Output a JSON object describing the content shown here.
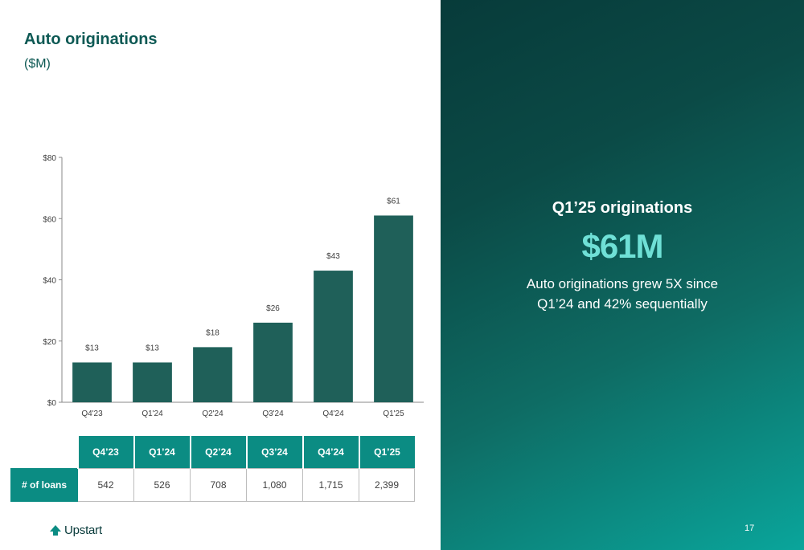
{
  "header": {
    "title": "Auto originations",
    "subtitle": "($M)"
  },
  "chart_data": {
    "type": "bar",
    "categories": [
      "Q4'23",
      "Q1'24",
      "Q2'24",
      "Q3'24",
      "Q4'24",
      "Q1'25"
    ],
    "values": [
      13,
      13,
      18,
      26,
      43,
      61
    ],
    "value_labels": [
      "$13",
      "$13",
      "$18",
      "$26",
      "$43",
      "$61"
    ],
    "ylim": [
      0,
      80
    ],
    "yticks": [
      0,
      20,
      40,
      60,
      80
    ],
    "ytick_labels": [
      "$0",
      "$20",
      "$40",
      "$60",
      "$80"
    ],
    "grid": false,
    "bar_color": "#1f6059"
  },
  "loans_table": {
    "headers": [
      "Q4’23",
      "Q1’24",
      "Q2’24",
      "Q3’24",
      "Q4’24",
      "Q1’25"
    ],
    "row_label": "# of loans",
    "values": [
      "542",
      "526",
      "708",
      "1,080",
      "1,715",
      "2,399"
    ]
  },
  "callout": {
    "heading": "Q1’25 originations",
    "value": "$61M",
    "body": "Auto originations grew 5X since Q1’24 and 42% sequentially"
  },
  "brand": {
    "name": "Upstart",
    "color": "#0b8c83"
  },
  "page_number": "17"
}
